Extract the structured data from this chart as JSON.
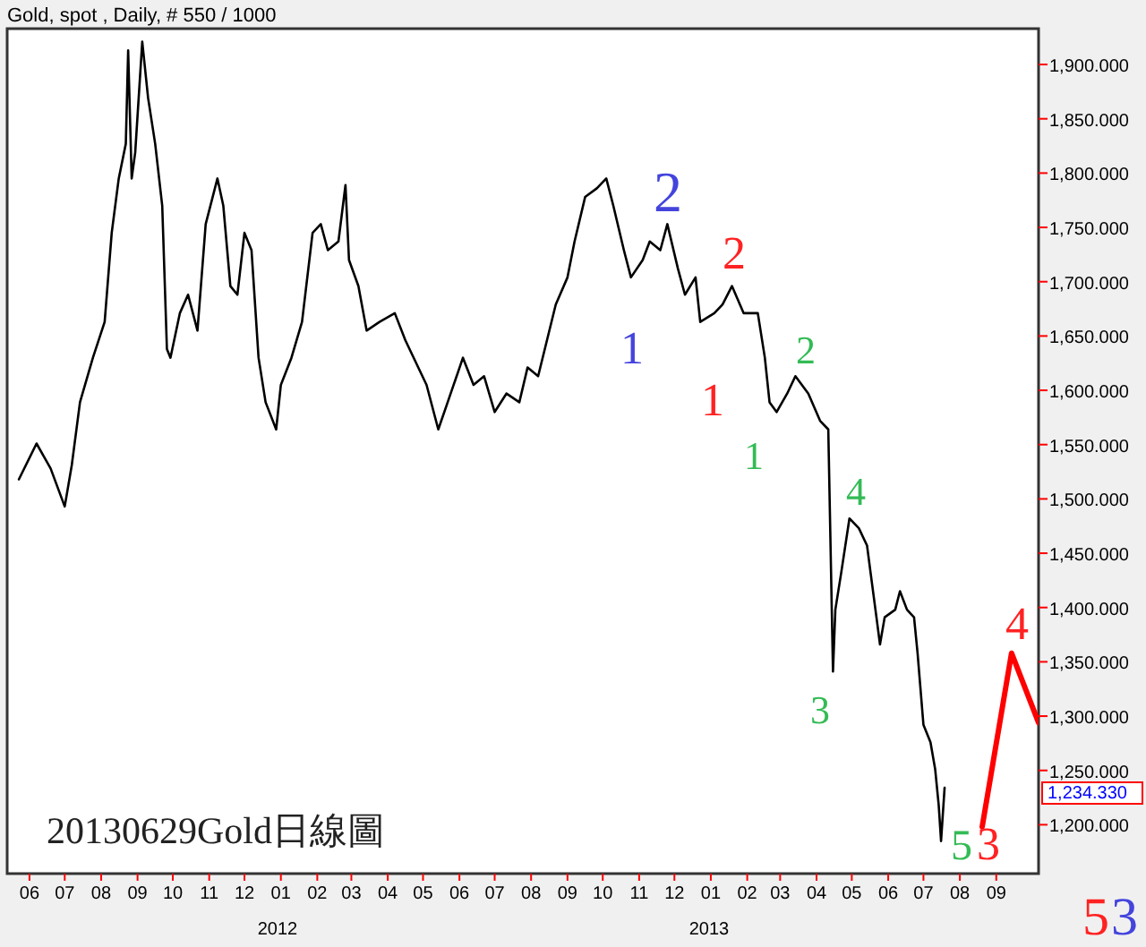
{
  "chart_data": {
    "type": "line",
    "title": "Gold, spot , Daily, # 550 / 1000",
    "xlim": [
      "2011-05-13",
      "2013-10-07"
    ],
    "ylim": [
      1155,
      1933
    ],
    "xticks": [
      {
        "value": "2011-06-01",
        "label": "06"
      },
      {
        "value": "2011-07-01",
        "label": "07"
      },
      {
        "value": "2011-08-01",
        "label": "08"
      },
      {
        "value": "2011-09-01",
        "label": "09"
      },
      {
        "value": "2011-10-01",
        "label": "10"
      },
      {
        "value": "2011-11-01",
        "label": "11"
      },
      {
        "value": "2011-12-01",
        "label": "12"
      },
      {
        "value": "2012-01-01",
        "label": "01"
      },
      {
        "value": "2012-02-01",
        "label": "02"
      },
      {
        "value": "2012-03-01",
        "label": "03"
      },
      {
        "value": "2012-04-01",
        "label": "04"
      },
      {
        "value": "2012-05-01",
        "label": "05"
      },
      {
        "value": "2012-06-01",
        "label": "06"
      },
      {
        "value": "2012-07-01",
        "label": "07"
      },
      {
        "value": "2012-08-01",
        "label": "08"
      },
      {
        "value": "2012-09-01",
        "label": "09"
      },
      {
        "value": "2012-10-01",
        "label": "10"
      },
      {
        "value": "2012-11-01",
        "label": "11"
      },
      {
        "value": "2012-12-01",
        "label": "12"
      },
      {
        "value": "2013-01-01",
        "label": "01"
      },
      {
        "value": "2013-02-01",
        "label": "02"
      },
      {
        "value": "2013-03-01",
        "label": "03"
      },
      {
        "value": "2013-04-01",
        "label": "04"
      },
      {
        "value": "2013-05-01",
        "label": "05"
      },
      {
        "value": "2013-06-01",
        "label": "06"
      },
      {
        "value": "2013-07-01",
        "label": "07"
      },
      {
        "value": "2013-08-01",
        "label": "08"
      },
      {
        "value": "2013-09-01",
        "label": "09"
      }
    ],
    "yticks": [
      {
        "value": 1200,
        "label": "1,200.000"
      },
      {
        "value": 1250,
        "label": "1,250.000"
      },
      {
        "value": 1300,
        "label": "1,300.000"
      },
      {
        "value": 1350,
        "label": "1,350.000"
      },
      {
        "value": 1400,
        "label": "1,400.000"
      },
      {
        "value": 1450,
        "label": "1,450.000"
      },
      {
        "value": 1500,
        "label": "1,500.000"
      },
      {
        "value": 1550,
        "label": "1,550.000"
      },
      {
        "value": 1600,
        "label": "1,600.000"
      },
      {
        "value": 1650,
        "label": "1,650.000"
      },
      {
        "value": 1700,
        "label": "1,700.000"
      },
      {
        "value": 1750,
        "label": "1,750.000"
      },
      {
        "value": 1800,
        "label": "1,800.000"
      },
      {
        "value": 1850,
        "label": "1,850.000"
      },
      {
        "value": 1900,
        "label": "1,900.000"
      }
    ],
    "series": [
      {
        "color": "#000000",
        "x": [
          "2011-05-23",
          "2011-06-07",
          "2011-06-19",
          "2011-07-01",
          "2011-07-07",
          "2011-07-14",
          "2011-07-25",
          "2011-08-04",
          "2011-08-10",
          "2011-08-16",
          "2011-08-22",
          "2011-08-24",
          "2011-08-27",
          "2011-08-30",
          "2011-09-05",
          "2011-09-10",
          "2011-09-16",
          "2011-09-22",
          "2011-09-26",
          "2011-09-29",
          "2011-10-07",
          "2011-10-14",
          "2011-10-22",
          "2011-10-29",
          "2011-11-08",
          "2011-11-13",
          "2011-11-19",
          "2011-11-25",
          "2011-12-01",
          "2011-12-07",
          "2011-12-13",
          "2011-12-19",
          "2011-12-28",
          "2012-01-01",
          "2012-01-10",
          "2012-01-19",
          "2012-01-28",
          "2012-02-04",
          "2012-02-10",
          "2012-02-19",
          "2012-02-25",
          "2012-02-28",
          "2012-03-07",
          "2012-03-14",
          "2012-03-25",
          "2012-04-07",
          "2012-04-16",
          "2012-05-04",
          "2012-05-14",
          "2012-05-22",
          "2012-06-04",
          "2012-06-13",
          "2012-06-22",
          "2012-07-01",
          "2012-07-11",
          "2012-07-22",
          "2012-07-29",
          "2012-08-07",
          "2012-08-22",
          "2012-09-01",
          "2012-09-07",
          "2012-09-16",
          "2012-09-26",
          "2012-10-04",
          "2012-10-10",
          "2012-10-19",
          "2012-10-25",
          "2012-11-04",
          "2012-11-10",
          "2012-11-19",
          "2012-11-25",
          "2012-12-04",
          "2012-12-10",
          "2012-12-19",
          "2012-12-23",
          "2013-01-04",
          "2013-01-11",
          "2013-01-19",
          "2013-01-29",
          "2013-02-10",
          "2013-02-16",
          "2013-02-20",
          "2013-02-26",
          "2013-03-07",
          "2013-03-14",
          "2013-03-25",
          "2013-04-04",
          "2013-04-11",
          "2013-04-15",
          "2013-04-17",
          "2013-04-22",
          "2013-04-29",
          "2013-05-07",
          "2013-05-14",
          "2013-05-17",
          "2013-05-22",
          "2013-05-25",
          "2013-05-29",
          "2013-06-07",
          "2013-06-11",
          "2013-06-17",
          "2013-06-23",
          "2013-06-26",
          "2013-07-01",
          "2013-07-07",
          "2013-07-11",
          "2013-07-14",
          "2013-07-16",
          "2013-07-19"
        ],
        "values": [
          1518,
          1551,
          1528,
          1493,
          1531,
          1589,
          1630,
          1663,
          1745,
          1795,
          1827,
          1913,
          1795,
          1819,
          1921,
          1869,
          1827,
          1770,
          1638,
          1630,
          1671,
          1688,
          1655,
          1753,
          1795,
          1770,
          1696,
          1688,
          1745,
          1729,
          1630,
          1589,
          1564,
          1605,
          1630,
          1663,
          1745,
          1753,
          1729,
          1737,
          1789,
          1720,
          1696,
          1655,
          1663,
          1671,
          1646,
          1605,
          1564,
          1589,
          1630,
          1605,
          1613,
          1580,
          1597,
          1589,
          1621,
          1613,
          1679,
          1704,
          1737,
          1778,
          1786,
          1795,
          1770,
          1729,
          1704,
          1720,
          1737,
          1729,
          1753,
          1712,
          1688,
          1704,
          1663,
          1671,
          1679,
          1696,
          1671,
          1671,
          1630,
          1589,
          1580,
          1597,
          1613,
          1597,
          1572,
          1564,
          1341,
          1398,
          1432,
          1482,
          1473,
          1457,
          1432,
          1391,
          1366,
          1391,
          1398,
          1415,
          1398,
          1391,
          1358,
          1292,
          1276,
          1251,
          1218,
          1185,
          1234
        ]
      },
      {
        "color": "#ff0000",
        "x": [
          "2013-08-20",
          "2013-09-14",
          "2013-10-07"
        ],
        "values": [
          1198,
          1358,
          1294
        ]
      }
    ],
    "annotations": [
      "20130629Gold日線圖",
      "2012",
      "2013",
      "1",
      "2",
      "1",
      "2",
      "1",
      "2",
      "3",
      "4",
      "5",
      "3",
      "4",
      "5",
      "3",
      "1,234.330"
    ]
  }
}
